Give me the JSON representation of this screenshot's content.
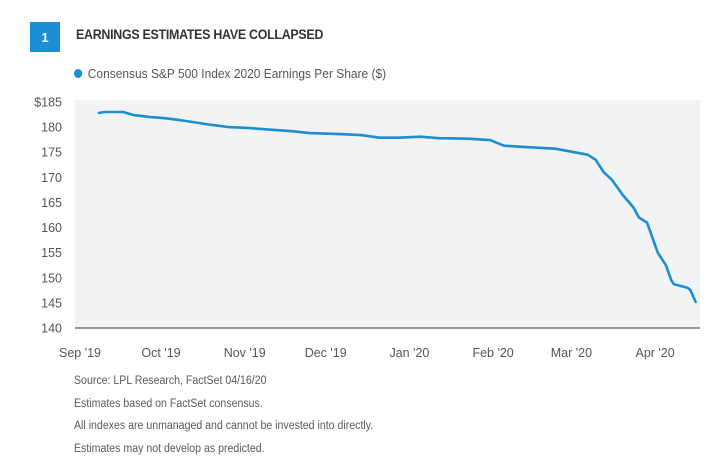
{
  "figure": {
    "number": "1",
    "title": "EARNINGS ESTIMATES HAVE COLLAPSED",
    "footnotes": [
      "Source: LPL Research, FactSet   04/16/20",
      "Estimates based on FactSet consensus.",
      "All indexes are unmanaged and cannot be invested into directly.",
      "Estimates may not develop as predicted."
    ]
  },
  "colors": {
    "accent": "#1a8fd6",
    "line": "#1d8fcf",
    "plot_background": "#f1f3f5",
    "axis": "#777777"
  },
  "chart_data": {
    "type": "line",
    "title": "EARNINGS ESTIMATES HAVE COLLAPSED",
    "xlabel": "",
    "ylabel": "",
    "ylim": [
      140,
      185
    ],
    "yticks": [
      140,
      145,
      150,
      155,
      160,
      165,
      170,
      175,
      180,
      185
    ],
    "ytick_labels": [
      "140",
      "145",
      "150",
      "155",
      "160",
      "165",
      "170",
      "175",
      "180",
      "$185"
    ],
    "x_domain_days": [
      0,
      228
    ],
    "xtick_days": [
      0,
      30,
      61,
      91,
      122,
      153,
      182,
      213
    ],
    "xtick_labels": [
      "Sep '19",
      "Oct '19",
      "Nov '19",
      "Dec '19",
      "Jan '20",
      "Feb '20",
      "Mar '20",
      "Apr '20"
    ],
    "x_units": "days since Sep 1, 2019",
    "grid": false,
    "legend": {
      "position": "top-left",
      "entries": [
        "Consensus S&P 500 Index 2020 Earnings Per Share ($)"
      ]
    },
    "series": [
      {
        "name": "Consensus S&P 500 Index 2020 Earnings Per Share ($)",
        "x": [
          7,
          9,
          16,
          20,
          26,
          31,
          37,
          42,
          48,
          55,
          63,
          70,
          78,
          85,
          96,
          104,
          111,
          118,
          126,
          133,
          144,
          152,
          157,
          166,
          176,
          183,
          188,
          191,
          194,
          197,
          201,
          205,
          207,
          210,
          212,
          214,
          217,
          219,
          220,
          225,
          226,
          228
        ],
        "values": [
          182.8,
          183.0,
          183.0,
          182.4,
          182.0,
          181.8,
          181.4,
          181.0,
          180.5,
          180.0,
          179.8,
          179.5,
          179.2,
          178.8,
          178.6,
          178.4,
          177.9,
          177.9,
          178.1,
          177.8,
          177.7,
          177.4,
          176.3,
          176.0,
          175.7,
          175.0,
          174.5,
          173.5,
          171.0,
          169.5,
          166.5,
          164.0,
          162.0,
          161.0,
          158.0,
          155.0,
          152.5,
          149.5,
          148.7,
          148.0,
          147.6,
          145.2
        ]
      }
    ]
  }
}
